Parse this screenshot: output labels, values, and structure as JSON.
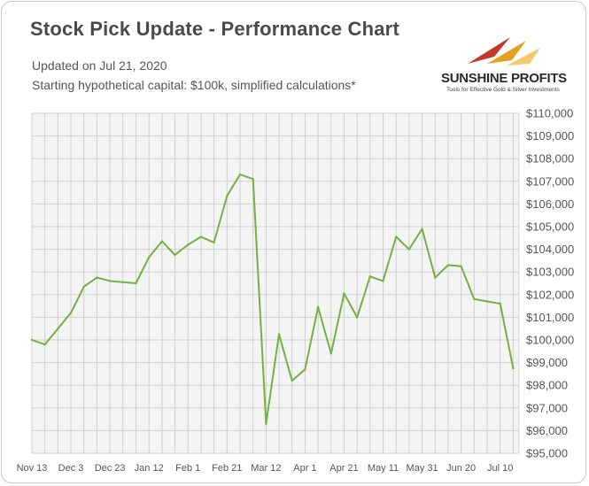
{
  "header": {
    "title": "Stock Pick Update - Performance Chart",
    "updated": "Updated on Jul 21, 2020",
    "capital_note": "Starting hypothetical capital: $100k, simplified calculations*"
  },
  "logo": {
    "name": "SUNSHINE PROFITS",
    "tagline": "Tools for Effective Gold & Silver Investments"
  },
  "colors": {
    "line": "#76b041",
    "plot_bg": "#f4f4f4",
    "grid": "#cfcfcf"
  },
  "chart_data": {
    "type": "line",
    "title": "Stock Pick Update - Performance Chart",
    "xlabel": "",
    "ylabel": "",
    "ylim": [
      95000,
      110000
    ],
    "y_ticks": [
      "$95,000",
      "$96,000",
      "$97,000",
      "$98,000",
      "$99,000",
      "$100,000",
      "$101,000",
      "$102,000",
      "$103,000",
      "$104,000",
      "$105,000",
      "$106,000",
      "$107,000",
      "$108,000",
      "$109,000",
      "$110,000"
    ],
    "x_tick_labels": [
      "Nov 13",
      "Dec 3",
      "Dec 23",
      "Jan 12",
      "Feb 1",
      "Feb 21",
      "Mar 12",
      "Apr 1",
      "Apr 21",
      "May 11",
      "May 31",
      "Jun 20",
      "Jul 10"
    ],
    "grid": true,
    "legend": "none",
    "series": [
      {
        "values": [
          100000,
          99800,
          100500,
          101200,
          102350,
          102750,
          102600,
          102550,
          102500,
          103650,
          104350,
          103750,
          104200,
          104550,
          104300,
          106350,
          107300,
          107100,
          96300,
          100250,
          98200,
          98700,
          101450,
          99400,
          102050,
          101000,
          102800,
          102600,
          104550,
          104000,
          104900,
          102750,
          103300,
          103250,
          101800,
          101700,
          101600,
          98750
        ]
      }
    ]
  }
}
